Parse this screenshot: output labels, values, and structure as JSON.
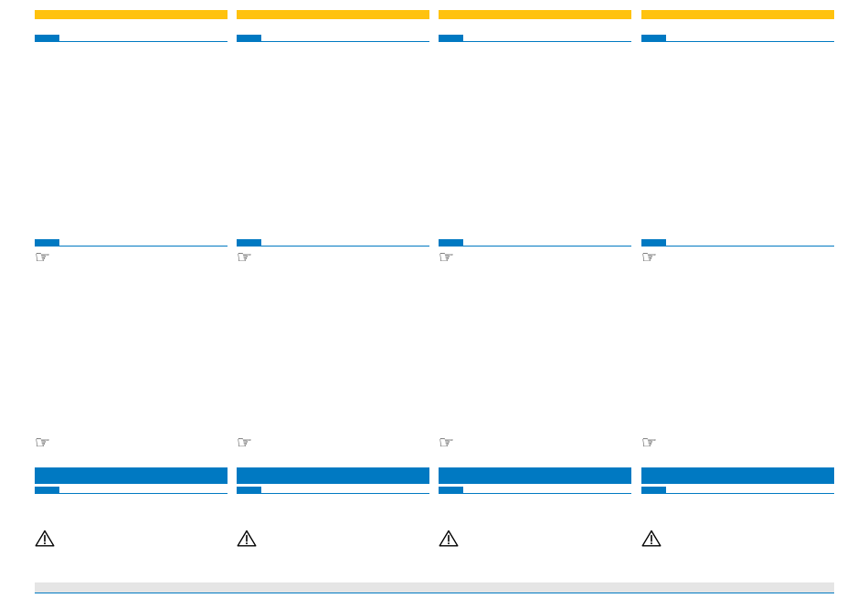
{
  "colors": {
    "accent_yellow": "#FFC20E",
    "brand_blue": "#0079C2",
    "footer_gray": "#E5E5E5",
    "icon_ink": "#000000"
  },
  "icons": {
    "note": "pointing-hand-icon",
    "warning": "warning-triangle-icon"
  }
}
